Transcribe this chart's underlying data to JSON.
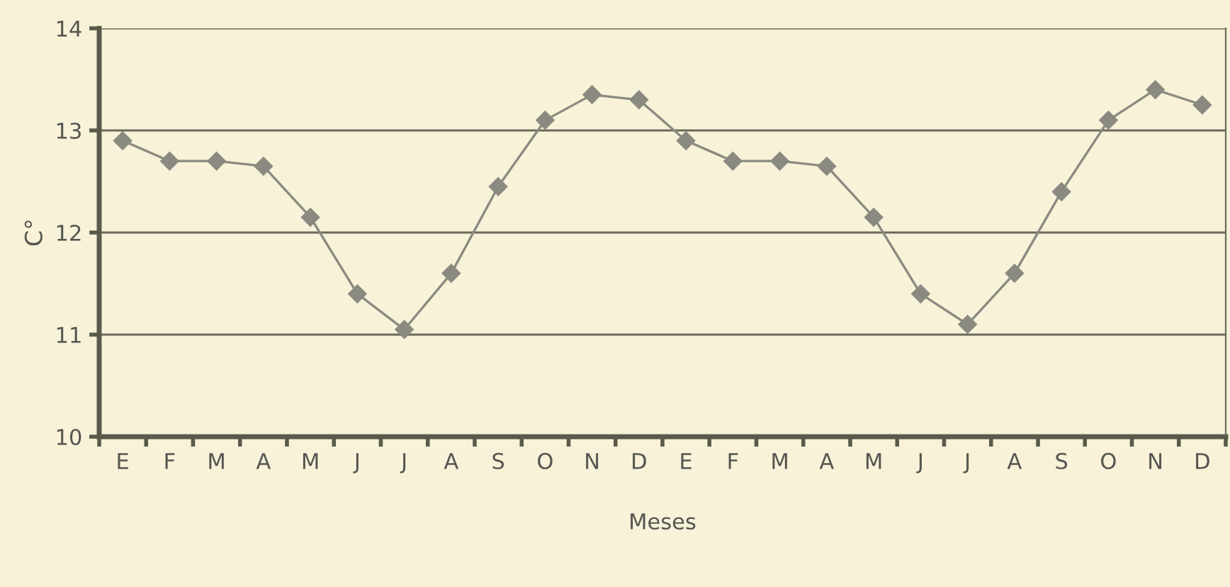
{
  "chart_data": {
    "type": "line",
    "xlabel": "Meses",
    "ylabel": "C°",
    "categories": [
      "E",
      "F",
      "M",
      "A",
      "M",
      "J",
      "J",
      "A",
      "S",
      "O",
      "N",
      "D",
      "E",
      "F",
      "M",
      "A",
      "M",
      "J",
      "J",
      "A",
      "S",
      "O",
      "N",
      "D"
    ],
    "series": [
      {
        "color": "#8a8a80",
        "values": [
          12.9,
          12.7,
          12.7,
          12.65,
          12.15,
          11.4,
          11.05,
          11.6,
          12.45,
          13.1,
          13.35,
          13.3,
          12.9,
          12.7,
          12.7,
          12.65,
          12.15,
          11.4,
          11.1,
          11.6,
          12.4,
          13.1,
          13.4,
          13.25
        ]
      }
    ],
    "ylim": [
      10,
      14
    ],
    "yticks": [
      10,
      11,
      12,
      13,
      14
    ],
    "grid": "y",
    "marker": "diamond",
    "line_style": "solid"
  }
}
